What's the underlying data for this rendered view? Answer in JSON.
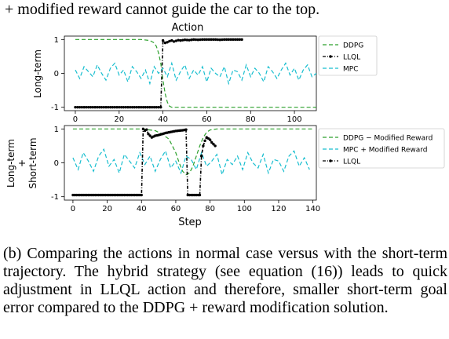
{
  "caption_top": "+ modified reward cannot guide the car to the top.",
  "caption_bottom": "(b) Comparing the actions in normal case versus with the short-term trajectory. The hybrid strategy (see equation (16)) leads to quick adjustment in LLQL action and therefore, smaller short-term goal error compared to the DDPG + reward modification solution.",
  "chart_data": [
    {
      "type": "line",
      "title": "Action",
      "xlabel": "",
      "ylabel": "Long-term",
      "xlim": [
        -5,
        110
      ],
      "ylim": [
        -1.1,
        1.1
      ],
      "xticks": [
        0,
        20,
        40,
        60,
        80,
        100
      ],
      "yticks": [
        -1,
        0,
        1
      ],
      "legend_position": "right",
      "series": [
        {
          "name": "DDPG",
          "color": "#2ca02c",
          "style": "dashed",
          "x": [
            0,
            30,
            34,
            36,
            37,
            38,
            39,
            40,
            41,
            42,
            43,
            44,
            46,
            110
          ],
          "y": [
            1,
            1,
            0.97,
            0.9,
            0.8,
            0.6,
            0.3,
            -0.2,
            -0.6,
            -0.85,
            -0.97,
            -1,
            -1,
            -1
          ]
        },
        {
          "name": "LLQL",
          "color": "#000000",
          "style": "dash-dot-marker",
          "x": [
            0,
            10,
            20,
            30,
            39,
            40,
            41,
            42,
            43,
            44,
            45,
            46,
            47,
            48,
            50,
            52,
            54,
            56,
            58,
            60,
            62,
            64,
            66,
            68,
            70,
            72,
            74,
            76
          ],
          "y": [
            -1,
            -1,
            -1,
            -1,
            -1,
            0.97,
            0.9,
            0.92,
            0.95,
            0.97,
            0.94,
            0.96,
            0.98,
            0.97,
            0.99,
            0.98,
            1,
            0.99,
            1,
            1,
            1,
            1,
            0.99,
            1,
            1,
            1,
            1,
            1
          ]
        },
        {
          "name": "MPC",
          "color": "#17becf",
          "style": "dashed",
          "x": [
            0,
            2,
            4,
            6,
            8,
            10,
            12,
            14,
            16,
            18,
            20,
            22,
            24,
            26,
            28,
            30,
            32,
            34,
            36,
            38,
            40,
            42,
            44,
            46,
            48,
            50,
            52,
            54,
            56,
            58,
            60,
            62,
            64,
            66,
            68,
            70,
            72,
            74,
            76,
            78,
            80,
            82,
            84,
            86,
            88,
            90,
            92,
            94,
            96,
            98,
            100,
            102,
            104,
            106,
            108,
            110
          ],
          "y": [
            0.1,
            -0.15,
            0.2,
            0.05,
            -0.1,
            0.25,
            0,
            -0.2,
            0.15,
            0.3,
            -0.05,
            0.1,
            -0.25,
            0.2,
            0.05,
            -0.15,
            0.1,
            -0.3,
            0.2,
            0,
            0.15,
            -0.1,
            0.3,
            -0.2,
            0.05,
            0.25,
            -0.15,
            0.1,
            -0.05,
            0.2,
            -0.25,
            0.15,
            0,
            -0.1,
            0.2,
            -0.3,
            0.1,
            0.05,
            -0.2,
            0.25,
            -0.1,
            0.15,
            0,
            -0.25,
            0.2,
            0.05,
            -0.15,
            0.1,
            0.3,
            -0.05,
            0.15,
            -0.2,
            0.1,
            0.25,
            -0.1,
            0
          ]
        }
      ]
    },
    {
      "type": "line",
      "title": "",
      "xlabel": "Step",
      "ylabel": "Long-term + Short-term",
      "ylabel_lines": [
        "Long-term",
        "+",
        "Short-term"
      ],
      "xlim": [
        -5,
        142
      ],
      "ylim": [
        -1.1,
        1.1
      ],
      "xticks": [
        0,
        20,
        40,
        60,
        80,
        100,
        120,
        140
      ],
      "yticks": [
        -1,
        0,
        1
      ],
      "legend_position": "right",
      "series": [
        {
          "name": "DDPG − Modified Reward",
          "color": "#2ca02c",
          "style": "dashed",
          "x": [
            0,
            40,
            48,
            52,
            56,
            58,
            60,
            62,
            64,
            66,
            68,
            70,
            72,
            74,
            76,
            78,
            80,
            84,
            88,
            140
          ],
          "y": [
            1,
            1,
            0.95,
            0.85,
            0.7,
            0.5,
            0.3,
            0,
            -0.25,
            -0.35,
            -0.3,
            -0.1,
            0.2,
            0.5,
            0.75,
            0.9,
            0.97,
            1,
            1,
            1
          ]
        },
        {
          "name": "MPC + Modified Reward",
          "color": "#17becf",
          "style": "dashed",
          "x": [
            0,
            3,
            6,
            9,
            12,
            15,
            18,
            21,
            24,
            27,
            30,
            33,
            36,
            39,
            42,
            45,
            48,
            51,
            54,
            57,
            60,
            63,
            66,
            69,
            72,
            75,
            78,
            81,
            84,
            87,
            90,
            93,
            96,
            99,
            102,
            105,
            108,
            111,
            114,
            117,
            120,
            123,
            126,
            129,
            132,
            135,
            138
          ],
          "y": [
            0.15,
            -0.2,
            0.3,
            0.05,
            -0.25,
            0.2,
            0.4,
            -0.1,
            0.1,
            -0.3,
            0.25,
            0.05,
            -0.15,
            0.3,
            -0.05,
            0.2,
            -0.25,
            0.1,
            0.35,
            -0.15,
            0.05,
            -0.3,
            0.2,
            0.1,
            -0.2,
            0.3,
            -0.1,
            0.05,
            0.25,
            -0.35,
            0.1,
            -0.05,
            0.2,
            -0.2,
            0.3,
            0,
            -0.15,
            0.25,
            -0.3,
            0.1,
            0.05,
            -0.25,
            0.2,
            0.35,
            -0.1,
            0.15,
            -0.2
          ]
        },
        {
          "name": "LLQL",
          "color": "#000000",
          "style": "dash-dot-marker",
          "x": [
            0,
            10,
            20,
            30,
            40,
            41,
            42,
            43,
            44,
            46,
            48,
            50,
            52,
            54,
            56,
            58,
            60,
            62,
            64,
            66,
            67,
            68,
            70,
            72,
            74,
            75,
            76,
            77,
            78,
            79,
            80,
            81,
            82,
            83
          ],
          "y": [
            -0.95,
            -0.95,
            -0.95,
            -0.95,
            -0.95,
            1,
            0.95,
            0.98,
            0.85,
            0.75,
            0.8,
            0.82,
            0.85,
            0.88,
            0.9,
            0.92,
            0.94,
            0.95,
            0.96,
            0.98,
            -0.95,
            -0.95,
            -0.95,
            -0.95,
            -0.95,
            0.2,
            0.5,
            0.65,
            0.75,
            0.72,
            0.68,
            0.6,
            0.55,
            0.5
          ]
        }
      ]
    }
  ]
}
